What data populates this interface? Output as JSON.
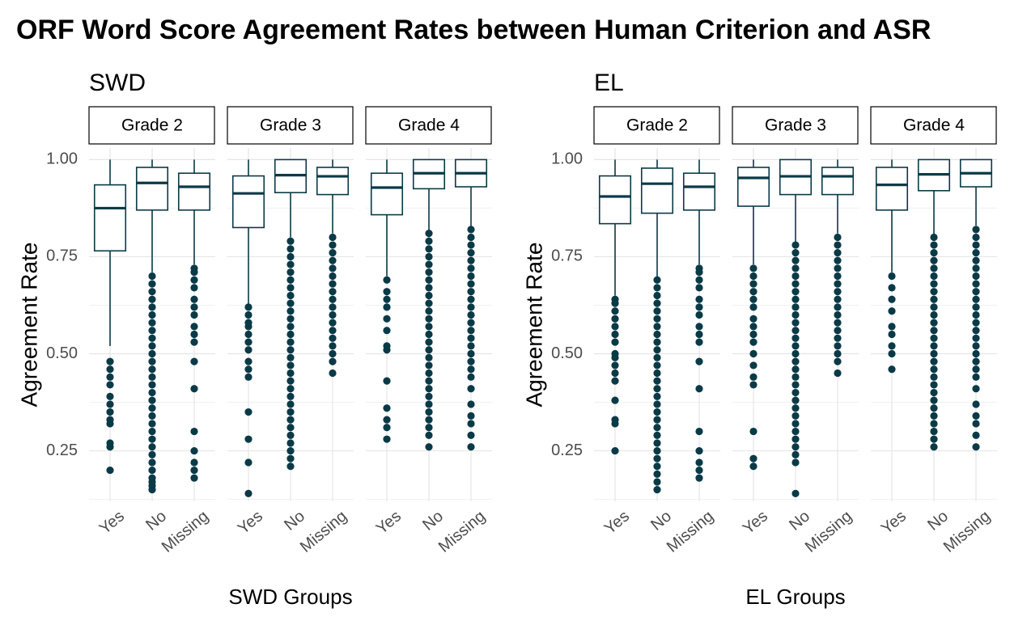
{
  "title": "ORF Word Score Agreement Rates between Human Criterion and ASR",
  "colors": {
    "mark": "#0b3a47",
    "grid": "#e6e6e6",
    "axis_text": "#4d4d4d",
    "text": "#000000",
    "background": "#ffffff"
  },
  "chart_data": [
    {
      "type": "boxplot",
      "subtitle": "SWD",
      "xlabel": "SWD Groups",
      "ylabel": "Agreement Rate",
      "ylim": [
        0.12,
        1.03
      ],
      "yticks": [
        0.25,
        0.5,
        0.75,
        1.0
      ],
      "ytick_labels": [
        "0.25",
        "0.50",
        "0.75",
        "1.00"
      ],
      "categories": [
        "Yes",
        "No",
        "Missing"
      ],
      "panels": [
        {
          "label": "Grade 2",
          "boxes": [
            {
              "category": "Yes",
              "min": 0.52,
              "q1": 0.765,
              "median": 0.875,
              "q3": 0.935,
              "max": 1.0,
              "outliers": [
                0.2,
                0.26,
                0.27,
                0.32,
                0.33,
                0.35,
                0.37,
                0.39,
                0.42,
                0.44,
                0.46,
                0.48
              ]
            },
            {
              "category": "No",
              "min": 0.71,
              "q1": 0.87,
              "median": 0.94,
              "q3": 0.98,
              "max": 1.0,
              "outliers": [
                0.15,
                0.16,
                0.17,
                0.18,
                0.2,
                0.22,
                0.24,
                0.26,
                0.28,
                0.3,
                0.32,
                0.34,
                0.36,
                0.38,
                0.4,
                0.42,
                0.44,
                0.46,
                0.48,
                0.5,
                0.52,
                0.54,
                0.56,
                0.58,
                0.6,
                0.62,
                0.64,
                0.66,
                0.68,
                0.7
              ]
            },
            {
              "category": "Missing",
              "min": 0.73,
              "q1": 0.87,
              "median": 0.93,
              "q3": 0.965,
              "max": 1.0,
              "outliers": [
                0.18,
                0.2,
                0.22,
                0.25,
                0.3,
                0.41,
                0.48,
                0.53,
                0.55,
                0.57,
                0.6,
                0.62,
                0.64,
                0.67,
                0.69,
                0.71,
                0.72
              ]
            }
          ]
        },
        {
          "label": "Grade 3",
          "boxes": [
            {
              "category": "Yes",
              "min": 0.62,
              "q1": 0.825,
              "median": 0.913,
              "q3": 0.958,
              "max": 1.0,
              "outliers": [
                0.14,
                0.22,
                0.28,
                0.35,
                0.44,
                0.46,
                0.48,
                0.51,
                0.53,
                0.55,
                0.57,
                0.58,
                0.6,
                0.62
              ]
            },
            {
              "category": "No",
              "min": 0.8,
              "q1": 0.915,
              "median": 0.96,
              "q3": 1.0,
              "max": 1.0,
              "outliers": [
                0.21,
                0.23,
                0.25,
                0.27,
                0.29,
                0.31,
                0.33,
                0.35,
                0.37,
                0.39,
                0.41,
                0.43,
                0.45,
                0.47,
                0.49,
                0.51,
                0.53,
                0.55,
                0.57,
                0.59,
                0.61,
                0.63,
                0.65,
                0.67,
                0.69,
                0.71,
                0.73,
                0.75,
                0.77,
                0.79
              ]
            },
            {
              "category": "Missing",
              "min": 0.81,
              "q1": 0.91,
              "median": 0.957,
              "q3": 0.98,
              "max": 1.0,
              "outliers": [
                0.45,
                0.48,
                0.5,
                0.52,
                0.54,
                0.56,
                0.58,
                0.6,
                0.62,
                0.64,
                0.66,
                0.68,
                0.7,
                0.72,
                0.74,
                0.76,
                0.78,
                0.8
              ]
            }
          ]
        },
        {
          "label": "Grade 4",
          "boxes": [
            {
              "category": "Yes",
              "min": 0.7,
              "q1": 0.858,
              "median": 0.928,
              "q3": 0.965,
              "max": 1.0,
              "outliers": [
                0.28,
                0.31,
                0.33,
                0.36,
                0.43,
                0.51,
                0.52,
                0.56,
                0.59,
                0.62,
                0.64,
                0.66,
                0.69
              ]
            },
            {
              "category": "No",
              "min": 0.81,
              "q1": 0.925,
              "median": 0.965,
              "q3": 1.0,
              "max": 1.0,
              "outliers": [
                0.26,
                0.29,
                0.31,
                0.33,
                0.35,
                0.37,
                0.39,
                0.41,
                0.43,
                0.45,
                0.47,
                0.49,
                0.51,
                0.53,
                0.55,
                0.57,
                0.59,
                0.61,
                0.63,
                0.65,
                0.67,
                0.69,
                0.71,
                0.73,
                0.75,
                0.77,
                0.79,
                0.81
              ]
            },
            {
              "category": "Missing",
              "min": 0.82,
              "q1": 0.93,
              "median": 0.965,
              "q3": 1.0,
              "max": 1.0,
              "outliers": [
                0.26,
                0.29,
                0.32,
                0.34,
                0.37,
                0.41,
                0.44,
                0.46,
                0.48,
                0.5,
                0.52,
                0.54,
                0.56,
                0.58,
                0.6,
                0.62,
                0.64,
                0.66,
                0.68,
                0.7,
                0.72,
                0.74,
                0.76,
                0.78,
                0.8,
                0.82
              ]
            }
          ]
        }
      ]
    },
    {
      "type": "boxplot",
      "subtitle": "EL",
      "xlabel": "EL Groups",
      "ylabel": "Agreement Rate",
      "ylim": [
        0.12,
        1.03
      ],
      "yticks": [
        0.25,
        0.5,
        0.75,
        1.0
      ],
      "ytick_labels": [
        "0.25",
        "0.50",
        "0.75",
        "1.00"
      ],
      "categories": [
        "Yes",
        "No",
        "Missing"
      ],
      "panels": [
        {
          "label": "Grade 2",
          "boxes": [
            {
              "category": "Yes",
              "min": 0.65,
              "q1": 0.835,
              "median": 0.905,
              "q3": 0.958,
              "max": 1.0,
              "outliers": [
                0.25,
                0.32,
                0.33,
                0.38,
                0.43,
                0.45,
                0.47,
                0.49,
                0.5,
                0.53,
                0.55,
                0.57,
                0.59,
                0.61,
                0.63,
                0.64
              ]
            },
            {
              "category": "No",
              "min": 0.69,
              "q1": 0.862,
              "median": 0.938,
              "q3": 0.978,
              "max": 1.0,
              "outliers": [
                0.15,
                0.17,
                0.19,
                0.21,
                0.23,
                0.25,
                0.27,
                0.29,
                0.31,
                0.33,
                0.35,
                0.37,
                0.39,
                0.41,
                0.43,
                0.45,
                0.47,
                0.49,
                0.51,
                0.53,
                0.55,
                0.57,
                0.59,
                0.61,
                0.63,
                0.65,
                0.67,
                0.69
              ]
            },
            {
              "category": "Missing",
              "min": 0.73,
              "q1": 0.87,
              "median": 0.93,
              "q3": 0.965,
              "max": 1.0,
              "outliers": [
                0.18,
                0.2,
                0.22,
                0.25,
                0.3,
                0.41,
                0.48,
                0.53,
                0.55,
                0.57,
                0.6,
                0.62,
                0.64,
                0.67,
                0.69,
                0.71,
                0.72
              ]
            }
          ]
        },
        {
          "label": "Grade 3",
          "boxes": [
            {
              "category": "Yes",
              "min": 0.73,
              "q1": 0.88,
              "median": 0.953,
              "q3": 0.98,
              "max": 1.0,
              "outliers": [
                0.21,
                0.23,
                0.3,
                0.42,
                0.44,
                0.47,
                0.5,
                0.53,
                0.55,
                0.57,
                0.59,
                0.62,
                0.64,
                0.66,
                0.68,
                0.7,
                0.72
              ]
            },
            {
              "category": "No",
              "min": 0.78,
              "q1": 0.91,
              "median": 0.957,
              "q3": 1.0,
              "max": 1.0,
              "outliers": [
                0.14,
                0.22,
                0.24,
                0.26,
                0.28,
                0.3,
                0.32,
                0.34,
                0.36,
                0.38,
                0.4,
                0.42,
                0.44,
                0.46,
                0.48,
                0.5,
                0.52,
                0.54,
                0.56,
                0.58,
                0.6,
                0.62,
                0.64,
                0.66,
                0.68,
                0.7,
                0.72,
                0.74,
                0.76,
                0.78
              ]
            },
            {
              "category": "Missing",
              "min": 0.81,
              "q1": 0.91,
              "median": 0.957,
              "q3": 0.98,
              "max": 1.0,
              "outliers": [
                0.45,
                0.48,
                0.5,
                0.52,
                0.54,
                0.56,
                0.58,
                0.6,
                0.62,
                0.64,
                0.66,
                0.68,
                0.7,
                0.72,
                0.74,
                0.76,
                0.78,
                0.8
              ]
            }
          ]
        },
        {
          "label": "Grade 4",
          "boxes": [
            {
              "category": "Yes",
              "min": 0.71,
              "q1": 0.87,
              "median": 0.935,
              "q3": 0.98,
              "max": 1.0,
              "outliers": [
                0.46,
                0.5,
                0.52,
                0.55,
                0.57,
                0.61,
                0.64,
                0.67,
                0.7
              ]
            },
            {
              "category": "No",
              "min": 0.8,
              "q1": 0.92,
              "median": 0.962,
              "q3": 1.0,
              "max": 1.0,
              "outliers": [
                0.26,
                0.28,
                0.3,
                0.32,
                0.34,
                0.36,
                0.38,
                0.4,
                0.42,
                0.44,
                0.46,
                0.48,
                0.5,
                0.52,
                0.54,
                0.56,
                0.58,
                0.6,
                0.62,
                0.64,
                0.66,
                0.68,
                0.7,
                0.72,
                0.74,
                0.76,
                0.78,
                0.8
              ]
            },
            {
              "category": "Missing",
              "min": 0.83,
              "q1": 0.93,
              "median": 0.965,
              "q3": 1.0,
              "max": 1.0,
              "outliers": [
                0.26,
                0.29,
                0.32,
                0.34,
                0.37,
                0.41,
                0.44,
                0.46,
                0.48,
                0.5,
                0.52,
                0.54,
                0.56,
                0.58,
                0.6,
                0.62,
                0.64,
                0.66,
                0.68,
                0.7,
                0.72,
                0.74,
                0.76,
                0.78,
                0.8,
                0.82
              ]
            }
          ]
        }
      ]
    }
  ]
}
